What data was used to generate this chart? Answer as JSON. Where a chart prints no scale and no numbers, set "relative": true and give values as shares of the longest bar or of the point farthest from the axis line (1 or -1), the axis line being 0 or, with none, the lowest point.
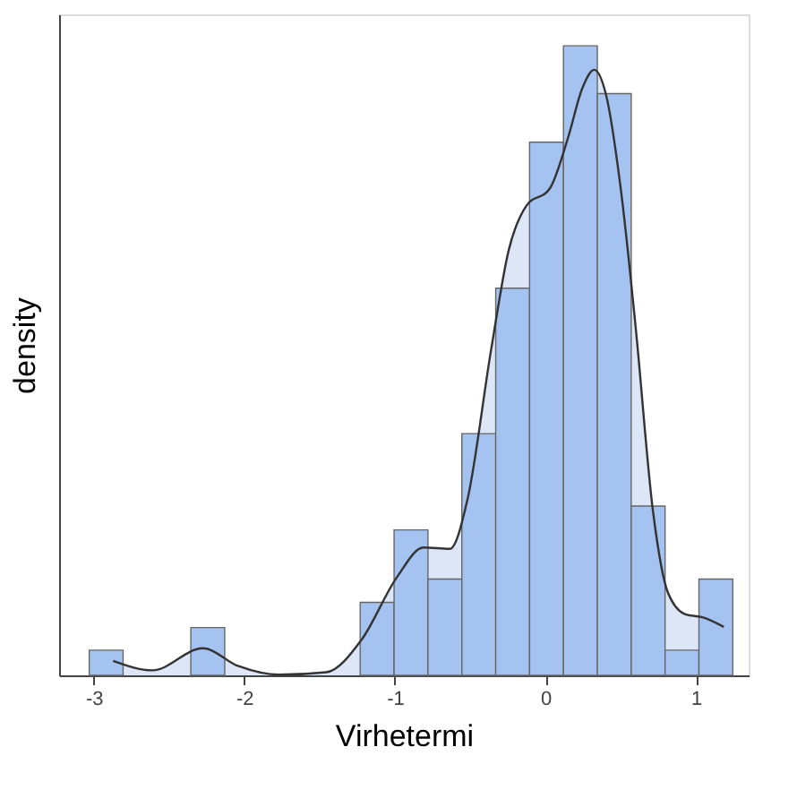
{
  "chart_data": {
    "type": "histogram",
    "xlabel": "Virhetermi",
    "ylabel": "density",
    "relative": true,
    "xlim": [
      -3.23,
      1.35
    ],
    "xticks": [
      -3,
      -2,
      -1,
      0,
      1
    ],
    "grid": false,
    "series": [
      {
        "type": "histogram",
        "color": "#a4c3f0",
        "bins": [
          -3.03,
          -2.805,
          -2.58,
          -2.355,
          -2.13,
          -1.905,
          -1.68,
          -1.455,
          -1.23,
          -1.005,
          -0.78,
          -0.555,
          -0.33,
          -0.105,
          0.12,
          0.345,
          0.57,
          0.795,
          1.02,
          1.245
        ],
        "values": [
          0.04,
          0,
          0,
          0.076,
          0,
          0,
          0,
          0,
          0.116,
          0.231,
          0.153,
          0.384,
          0.615,
          0.847,
          1.0,
          0.924,
          0.269,
          0.04,
          0.153
        ]
      },
      {
        "type": "area",
        "color": "#dce6f7",
        "x": [
          -2.871,
          -2.609,
          -2.276,
          -2.042,
          -1.768,
          -1.455,
          -1.22,
          -0.986,
          -0.81,
          -0.634,
          -0.517,
          -0.36,
          -0.243,
          -0.129,
          0.031,
          0.148,
          0.246,
          0.324,
          0.402,
          0.5,
          0.598,
          0.715,
          0.813,
          0.93,
          1.048,
          1.185
        ],
        "values": [
          0.023,
          0.008,
          0.043,
          0.015,
          0.001,
          0.005,
          0.057,
          0.156,
          0.203,
          0.201,
          0.28,
          0.518,
          0.676,
          0.745,
          0.774,
          0.852,
          0.933,
          0.962,
          0.923,
          0.774,
          0.557,
          0.26,
          0.132,
          0.097,
          0.092,
          0.077
        ]
      }
    ]
  }
}
